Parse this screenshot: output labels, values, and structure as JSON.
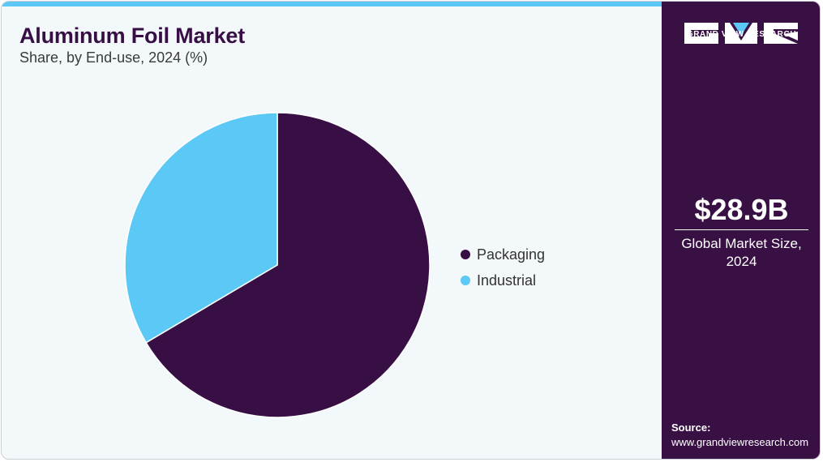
{
  "header": {
    "title": "Aluminum Foil Market",
    "subtitle": "Share, by End-use, 2024 (%)"
  },
  "chart_data": {
    "type": "pie",
    "title": "Aluminum Foil Market",
    "subtitle": "Share, by End-use, 2024 (%)",
    "categories": [
      "Packaging",
      "Industrial"
    ],
    "values": [
      66.5,
      33.5
    ],
    "colors": [
      "#380f45",
      "#5bc8f5"
    ],
    "start_angle_deg": 0,
    "direction": "clockwise",
    "legend_position": "right"
  },
  "legend": {
    "items": [
      {
        "label": "Packaging",
        "color": "#380f45"
      },
      {
        "label": "Industrial",
        "color": "#5bc8f5"
      }
    ]
  },
  "sidebar": {
    "logo_text": "GRAND VIEW RESEARCH",
    "market_value": "$28.9B",
    "market_label_line1": "Global Market Size,",
    "market_label_line2": "2024",
    "source_label": "Source:",
    "source_url": "www.grandviewresearch.com"
  },
  "colors": {
    "sidebar_bg": "#381044",
    "accent": "#5bc8f5",
    "title": "#370f45",
    "plot_bg": "#f3f8fb"
  }
}
